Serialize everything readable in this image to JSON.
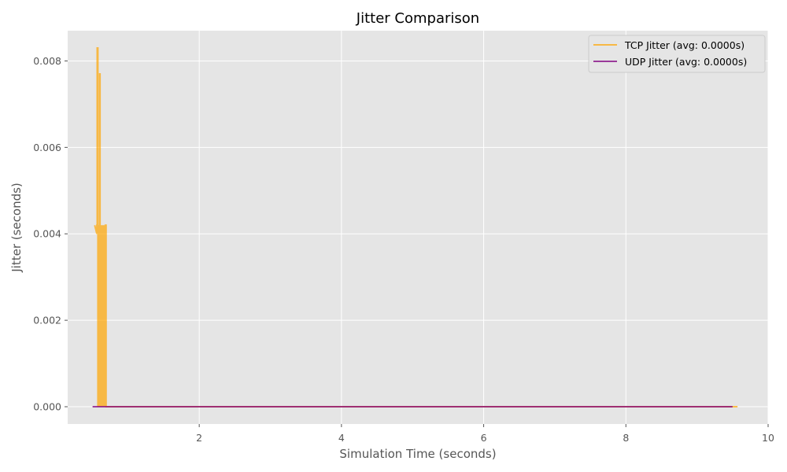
{
  "chart_data": {
    "type": "line",
    "title": "Jitter Comparison",
    "xlabel": "Simulation Time (seconds)",
    "ylabel": "Jitter (seconds)",
    "xlim": [
      0.15,
      10.0
    ],
    "ylim": [
      -0.0004,
      0.0087
    ],
    "xticks": [
      2,
      4,
      6,
      8,
      10
    ],
    "xtick_labels": [
      "2",
      "4",
      "6",
      "8",
      "10"
    ],
    "yticks": [
      0.0,
      0.002,
      0.004,
      0.006,
      0.008
    ],
    "ytick_labels": [
      "0.000",
      "0.002",
      "0.004",
      "0.006",
      "0.008"
    ],
    "grid": true,
    "legend_position": "top-right",
    "background_color": "#e5e5e5",
    "grid_color": "#ffffff",
    "series": [
      {
        "name": "TCP Jitter (avg: 0.0000s)",
        "color": "#ffa500",
        "opacity": 0.7,
        "x": [
          0.53,
          0.56,
          0.56,
          0.565,
          0.565,
          0.575,
          0.575,
          0.58,
          0.58,
          0.585,
          0.59,
          0.595,
          0.6,
          0.6,
          0.605,
          0.605,
          0.61,
          0.615,
          0.62,
          0.625,
          0.63,
          0.635,
          0.64,
          0.645,
          0.65,
          0.655,
          0.66,
          0.665,
          0.67,
          0.675,
          0.68,
          0.68,
          0.69,
          0.69,
          9.5,
          9.57
        ],
        "y": [
          0.0042,
          0.004,
          0.0042,
          0.0042,
          0.0083,
          0.0083,
          0.0,
          0.0042,
          0.0,
          0.0042,
          0.0,
          0.0042,
          0.0,
          0.0077,
          0.0077,
          0.0,
          0.0042,
          0.0,
          0.0042,
          0.0,
          0.0042,
          0.0,
          0.0042,
          0.0,
          0.0042,
          0.0,
          0.0042,
          0.0,
          0.0042,
          0.0,
          0.0042,
          0.0042,
          0.0042,
          0.0,
          0.0,
          0.0
        ]
      },
      {
        "name": "UDP Jitter (avg: 0.0000s)",
        "color": "#800080",
        "opacity": 0.75,
        "x": [
          0.5,
          9.5
        ],
        "y": [
          0.0,
          0.0
        ]
      }
    ]
  }
}
